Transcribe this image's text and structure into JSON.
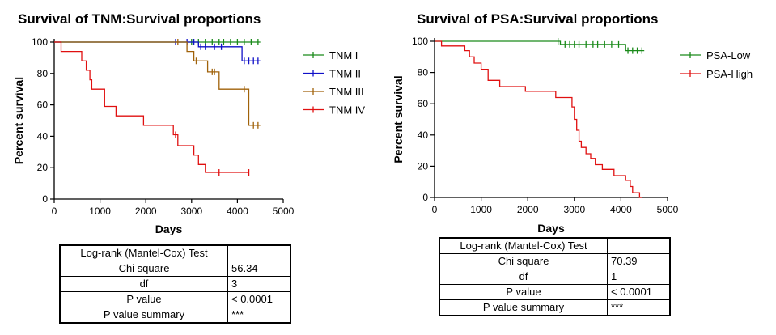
{
  "chart_data": [
    {
      "type": "line",
      "step": true,
      "title": "Survival of TNM:Survival proportions",
      "xlabel": "Days",
      "ylabel": "Percent survival",
      "xlim": [
        0,
        5000
      ],
      "ylim": [
        0,
        100
      ],
      "xticks": [
        0,
        1000,
        2000,
        3000,
        4000,
        5000
      ],
      "yticks": [
        0,
        20,
        40,
        60,
        80,
        100
      ],
      "legend_position": "right",
      "series": [
        {
          "name": "TNM I",
          "color": "#1a8a1a",
          "x": [
            0,
            4500
          ],
          "y": [
            100,
            100
          ],
          "censored": [
            3000,
            3150,
            3300,
            3450,
            3600,
            3700,
            3850,
            4000,
            4150,
            4300,
            4450
          ]
        },
        {
          "name": "TNM II",
          "color": "#1010c8",
          "x": [
            0,
            3150,
            3150,
            4100,
            4100,
            4500
          ],
          "y": [
            100,
            100,
            97,
            97,
            88,
            88
          ],
          "censored": [
            2650,
            2900,
            3050,
            3200,
            3300,
            3500,
            3650,
            4150,
            4250,
            4350,
            4450
          ]
        },
        {
          "name": "TNM III",
          "color": "#a0620a",
          "x": [
            0,
            2900,
            2900,
            3050,
            3050,
            3350,
            3350,
            3600,
            3600,
            4250,
            4250,
            4500
          ],
          "y": [
            100,
            100,
            94,
            94,
            88,
            88,
            81,
            81,
            70,
            70,
            47,
            47
          ],
          "censored": [
            2700,
            3100,
            3450,
            3500,
            4150,
            4350,
            4450
          ]
        },
        {
          "name": "TNM IV",
          "color": "#e01010",
          "x": [
            0,
            150,
            150,
            600,
            600,
            700,
            700,
            780,
            780,
            820,
            820,
            1100,
            1100,
            1350,
            1350,
            1950,
            1950,
            2600,
            2600,
            2700,
            2700,
            3050,
            3050,
            3150,
            3150,
            3300,
            3300,
            4250
          ],
          "y": [
            100,
            100,
            94,
            94,
            88,
            88,
            82,
            82,
            76,
            76,
            70,
            70,
            59,
            59,
            53,
            53,
            47,
            47,
            41,
            41,
            34,
            34,
            28,
            28,
            22,
            22,
            17,
            17
          ],
          "censored": [
            2650,
            3600,
            4250
          ]
        }
      ],
      "stats_table": {
        "header": "Log-rank (Mantel-Cox) Test",
        "rows": [
          {
            "label": "Chi square",
            "value": "56.34"
          },
          {
            "label": "df",
            "value": "3"
          },
          {
            "label": "P value",
            "value": "< 0.0001"
          },
          {
            "label": "P value summary",
            "value": "***"
          }
        ]
      }
    },
    {
      "type": "line",
      "step": true,
      "title": "Survival of PSA:Survival proportions",
      "xlabel": "Days",
      "ylabel": "Percent survival",
      "xlim": [
        0,
        5000
      ],
      "ylim": [
        0,
        100
      ],
      "xticks": [
        0,
        1000,
        2000,
        3000,
        4000,
        5000
      ],
      "yticks": [
        0,
        20,
        40,
        60,
        80,
        100
      ],
      "legend_position": "top-right",
      "series": [
        {
          "name": "PSA-Low",
          "color": "#1a8a1a",
          "x": [
            0,
            2700,
            2700,
            4100,
            4100,
            4500
          ],
          "y": [
            100,
            100,
            98,
            98,
            94,
            94
          ],
          "censored": [
            2650,
            2800,
            2900,
            3000,
            3100,
            3250,
            3400,
            3500,
            3650,
            3800,
            3950,
            4150,
            4250,
            4350,
            4450
          ]
        },
        {
          "name": "PSA-High",
          "color": "#e01010",
          "x": [
            0,
            150,
            150,
            650,
            650,
            750,
            750,
            850,
            850,
            1000,
            1000,
            1150,
            1150,
            1400,
            1400,
            1950,
            1950,
            2600,
            2600,
            2950,
            2950,
            3000,
            3000,
            3050,
            3050,
            3100,
            3100,
            3150,
            3150,
            3250,
            3250,
            3350,
            3350,
            3450,
            3450,
            3600,
            3600,
            3850,
            3850,
            4100,
            4100,
            4200,
            4200,
            4250,
            4250,
            4400,
            4400,
            4450
          ],
          "y": [
            100,
            100,
            97,
            97,
            94,
            94,
            90,
            90,
            86,
            86,
            82,
            82,
            75,
            75,
            71,
            71,
            68,
            68,
            64,
            64,
            58,
            58,
            50,
            50,
            43,
            43,
            36,
            36,
            32,
            32,
            28,
            28,
            25,
            25,
            21,
            21,
            18,
            18,
            14,
            14,
            11,
            11,
            7,
            7,
            3,
            3,
            0,
            0
          ],
          "censored": []
        }
      ],
      "stats_table": {
        "header": "Log-rank (Mantel-Cox) Test",
        "rows": [
          {
            "label": "Chi square",
            "value": "70.39"
          },
          {
            "label": "df",
            "value": "1"
          },
          {
            "label": "P value",
            "value": "< 0.0001"
          },
          {
            "label": "P value summary",
            "value": "***"
          }
        ]
      }
    }
  ]
}
